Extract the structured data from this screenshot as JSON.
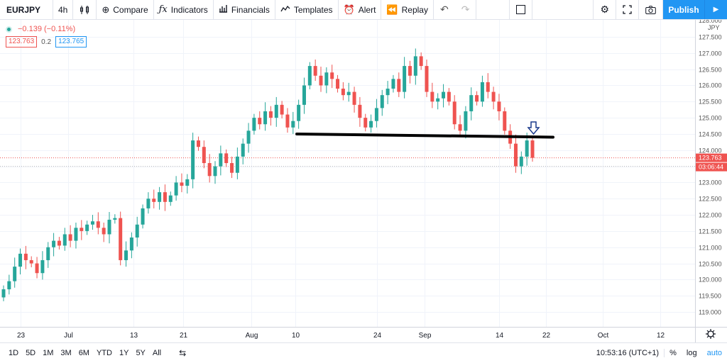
{
  "toolbar": {
    "symbol": "EURJPY",
    "interval": "4h",
    "compare": "Compare",
    "indicators": "Indicators",
    "financials": "Financials",
    "templates": "Templates",
    "alert": "Alert",
    "replay": "Replay",
    "publish": "Publish"
  },
  "legend": {
    "change": "−0.139 (−0.11%)",
    "bid": "123.763",
    "spread": "0.2",
    "ask": "123.765"
  },
  "price_axis": {
    "currency": "JPY",
    "last_price": "123.763",
    "countdown": "03:06:44",
    "top_label": "128.000"
  },
  "bottom": {
    "ranges": [
      "1D",
      "5D",
      "1M",
      "3M",
      "6M",
      "YTD",
      "1Y",
      "5Y",
      "All"
    ],
    "clock": "10:53:16 (UTC+1)",
    "percent": "%",
    "log": "log",
    "auto": "auto"
  },
  "colors": {
    "up": "#26a69a",
    "down": "#ef5350",
    "accent": "#2196f3",
    "trendline": "#000000",
    "annotation_arrow": "#1a3a8c"
  },
  "chart_data": {
    "type": "candlestick",
    "symbol": "EURJPY",
    "interval": "4h",
    "ylabel": "JPY",
    "ylim": [
      118.75,
      128.0
    ],
    "y_ticks": [
      "119.000",
      "119.500",
      "120.000",
      "120.500",
      "121.000",
      "121.500",
      "122.000",
      "122.500",
      "123.000",
      "123.500",
      "124.000",
      "124.500",
      "125.000",
      "125.500",
      "126.000",
      "126.500",
      "127.000",
      "127.500"
    ],
    "x_ticks": [
      "23",
      "Jul",
      "13",
      "21",
      "Aug",
      "10",
      "24",
      "Sep",
      "14",
      "22",
      "Oct",
      "12"
    ],
    "series": [
      {
        "close": [
          119.7,
          119.95,
          120.4,
          120.8,
          120.6,
          120.5,
          120.2,
          120.6,
          121.0,
          121.2,
          121.05,
          121.4,
          121.2,
          121.6,
          121.5,
          121.7,
          121.8,
          121.6,
          121.4,
          121.85,
          121.9,
          120.6,
          120.9,
          121.3,
          121.7,
          122.2,
          122.5,
          122.4,
          122.7,
          122.4,
          122.6,
          123.0,
          122.9,
          123.1,
          124.3,
          124.1,
          123.6,
          123.2,
          123.5,
          123.9,
          123.6,
          123.3,
          123.8,
          124.2,
          124.6,
          125.0,
          124.8,
          125.2,
          125.0,
          125.4,
          125.1,
          124.7,
          124.9,
          125.4,
          126.0,
          126.6,
          126.3,
          126.0,
          126.4,
          126.2,
          125.9,
          125.7,
          125.8,
          125.4,
          125.0,
          124.7,
          124.9,
          125.3,
          125.7,
          125.9,
          126.2,
          125.8,
          126.6,
          126.3,
          126.9,
          126.6,
          125.8,
          125.5,
          125.6,
          125.8,
          125.5,
          124.8,
          124.6,
          125.2,
          125.7,
          125.5,
          126.1,
          125.8,
          125.5,
          125.2,
          124.6,
          124.2,
          123.5,
          123.8,
          124.3,
          123.763
        ]
      }
    ],
    "last_price": 123.763,
    "annotations": {
      "horizontal_line": {
        "type": "neckline",
        "y_start": 124.5,
        "y_end": 124.4
      },
      "arrow": {
        "direction": "down"
      }
    }
  }
}
